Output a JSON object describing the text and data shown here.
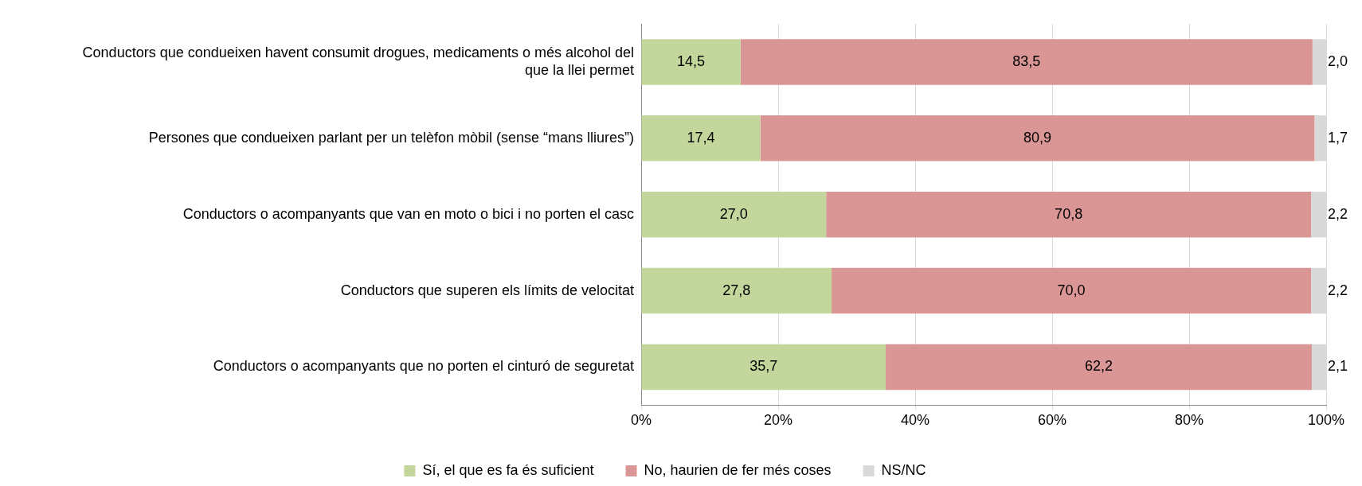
{
  "chart_data": {
    "type": "bar",
    "orientation": "horizontal",
    "stacked": true,
    "grid": "x",
    "legend": "bottom",
    "categories": [
      "Conductors que condueixen havent consumit drogues, medicaments o més alcohol del que la llei permet",
      "Persones que condueixen parlant per un telèfon mòbil (sense “mans lliures”)",
      "Conductors o acompanyants que van en moto o bici i no porten el casc",
      "Conductors que superen els límits de velocitat",
      "Conductors o acompanyants que no porten el cinturó de seguretat"
    ],
    "series": [
      {
        "name": "Sí, el que es fa és suficient",
        "color": "#c3d69b",
        "values": [
          14.5,
          17.4,
          27.0,
          27.8,
          35.7
        ],
        "value_labels": [
          "14,5",
          "17,4",
          "27,0",
          "27,8",
          "35,7"
        ]
      },
      {
        "name": "No, haurien de fer més coses",
        "color": "#d99694",
        "values": [
          83.5,
          80.9,
          70.8,
          70.0,
          62.2
        ],
        "value_labels": [
          "83,5",
          "80,9",
          "70,8",
          "70,0",
          "62,2"
        ]
      },
      {
        "name": "NS/NC",
        "color": "#d9d9d9",
        "values": [
          2.0,
          1.7,
          2.2,
          2.2,
          2.1
        ],
        "value_labels": [
          "2,0",
          "1,7",
          "2,2",
          "2,2",
          "2,1"
        ]
      }
    ],
    "xlim": [
      0,
      100
    ],
    "xticks": [
      {
        "value": 0,
        "label": "0%"
      },
      {
        "value": 20,
        "label": "20%"
      },
      {
        "value": 40,
        "label": "40%"
      },
      {
        "value": 60,
        "label": "60%"
      },
      {
        "value": 80,
        "label": "80%"
      },
      {
        "value": 100,
        "label": "100%"
      }
    ]
  }
}
